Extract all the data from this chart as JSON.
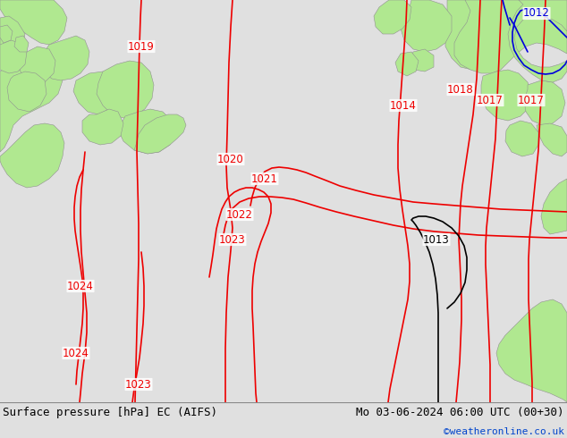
{
  "title_left": "Surface pressure [hPa] EC (AIFS)",
  "title_right": "Mo 03-06-2024 06:00 UTC (00+30)",
  "copyright": "©weatheronline.co.uk",
  "bg_color": "#c8c8c8",
  "land_color": "#b0e890",
  "sea_color": "#c8c8c8",
  "isobar_color_red": "#ee0000",
  "isobar_color_black": "#000000",
  "isobar_color_blue": "#0000dd",
  "bottom_bar_color": "#e0e0e0",
  "text_color": "#000000",
  "copyright_color": "#0044cc",
  "font_size_bottom": 9,
  "fig_width": 6.34,
  "fig_height": 4.9,
  "dpi": 100
}
